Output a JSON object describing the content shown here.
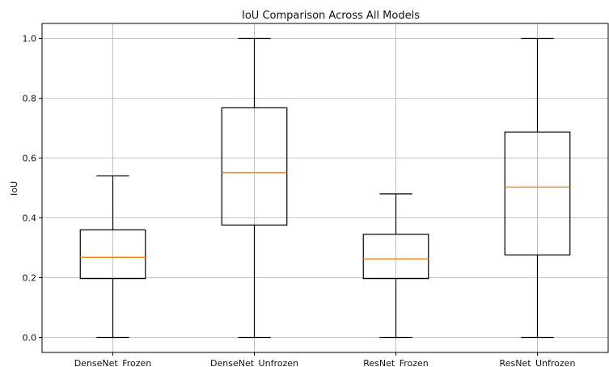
{
  "chart_data": {
    "type": "box",
    "title": "IoU Comparison Across All Models",
    "xlabel": "",
    "ylabel": "IoU",
    "ylim": [
      -0.05,
      1.05
    ],
    "yticks": [
      0.0,
      0.2,
      0.4,
      0.6,
      0.8,
      1.0
    ],
    "ytick_labels": [
      "0.0",
      "0.2",
      "0.4",
      "0.6",
      "0.8",
      "1.0"
    ],
    "grid": true,
    "categories": [
      "DenseNet_Frozen",
      "DenseNet_Unfrozen",
      "ResNet_Frozen",
      "ResNet_Unfrozen"
    ],
    "boxes": [
      {
        "min": 0.0,
        "q1": 0.197,
        "median": 0.268,
        "q3": 0.36,
        "max": 0.54
      },
      {
        "min": 0.0,
        "q1": 0.376,
        "median": 0.551,
        "q3": 0.768,
        "max": 1.0
      },
      {
        "min": 0.0,
        "q1": 0.197,
        "median": 0.263,
        "q3": 0.345,
        "max": 0.48
      },
      {
        "min": 0.0,
        "q1": 0.276,
        "median": 0.503,
        "q3": 0.687,
        "max": 1.0
      }
    ],
    "colors": {
      "box": "#000000",
      "median": "#ff7f0e",
      "grid": "#b0b0b0"
    }
  }
}
